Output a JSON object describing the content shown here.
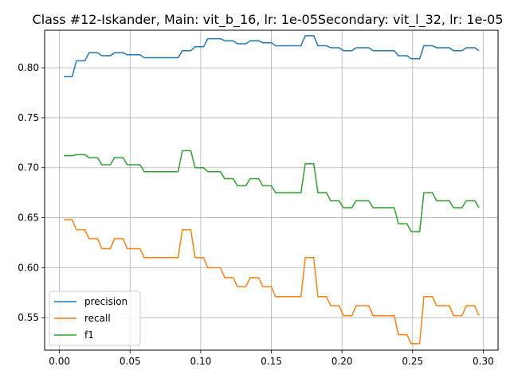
{
  "chart_data": {
    "type": "line",
    "title": "Class #12-Iskander, Main: vit_b_16, lr: 1e-05Secondary: vit_l_32, lr: 1e-05",
    "xlabel": "",
    "ylabel": "",
    "xlim": [
      -0.0105,
      0.3105
    ],
    "ylim": [
      0.5175,
      0.8375
    ],
    "x_ticks": [
      0.0,
      0.05,
      0.1,
      0.15,
      0.2,
      0.25,
      0.3
    ],
    "x_tick_labels": [
      "0.00",
      "0.05",
      "0.10",
      "0.15",
      "0.20",
      "0.25",
      "0.30"
    ],
    "y_ticks": [
      0.55,
      0.6,
      0.65,
      0.7,
      0.75,
      0.8
    ],
    "y_tick_labels": [
      "0.55",
      "0.60",
      "0.65",
      "0.70",
      "0.75",
      "0.80"
    ],
    "grid": true,
    "legend_position": "lower-left",
    "series": [
      {
        "name": "precision",
        "color": "#1f77b4",
        "points": [
          [
            0.003,
            0.791
          ],
          [
            0.009,
            0.791
          ],
          [
            0.012,
            0.807
          ],
          [
            0.018,
            0.807
          ],
          [
            0.021,
            0.815
          ],
          [
            0.027,
            0.815
          ],
          [
            0.03,
            0.812
          ],
          [
            0.036,
            0.812
          ],
          [
            0.039,
            0.815
          ],
          [
            0.045,
            0.815
          ],
          [
            0.048,
            0.813
          ],
          [
            0.057,
            0.813
          ],
          [
            0.06,
            0.81
          ],
          [
            0.084,
            0.81
          ],
          [
            0.087,
            0.817
          ],
          [
            0.093,
            0.817
          ],
          [
            0.096,
            0.821
          ],
          [
            0.102,
            0.821
          ],
          [
            0.105,
            0.829
          ],
          [
            0.114,
            0.829
          ],
          [
            0.117,
            0.827
          ],
          [
            0.123,
            0.827
          ],
          [
            0.126,
            0.824
          ],
          [
            0.132,
            0.824
          ],
          [
            0.135,
            0.827
          ],
          [
            0.141,
            0.827
          ],
          [
            0.144,
            0.825
          ],
          [
            0.15,
            0.825
          ],
          [
            0.153,
            0.822
          ],
          [
            0.171,
            0.822
          ],
          [
            0.174,
            0.832
          ],
          [
            0.18,
            0.832
          ],
          [
            0.183,
            0.822
          ],
          [
            0.189,
            0.822
          ],
          [
            0.192,
            0.82
          ],
          [
            0.198,
            0.82
          ],
          [
            0.201,
            0.817
          ],
          [
            0.207,
            0.817
          ],
          [
            0.21,
            0.82
          ],
          [
            0.219,
            0.82
          ],
          [
            0.222,
            0.817
          ],
          [
            0.237,
            0.817
          ],
          [
            0.24,
            0.812
          ],
          [
            0.246,
            0.812
          ],
          [
            0.249,
            0.809
          ],
          [
            0.255,
            0.809
          ],
          [
            0.258,
            0.822
          ],
          [
            0.264,
            0.822
          ],
          [
            0.267,
            0.82
          ],
          [
            0.276,
            0.82
          ],
          [
            0.279,
            0.817
          ],
          [
            0.285,
            0.817
          ],
          [
            0.288,
            0.82
          ],
          [
            0.294,
            0.82
          ],
          [
            0.297,
            0.817
          ]
        ]
      },
      {
        "name": "recall",
        "color": "#ff7f0e",
        "points": [
          [
            0.003,
            0.648
          ],
          [
            0.009,
            0.648
          ],
          [
            0.012,
            0.638
          ],
          [
            0.018,
            0.638
          ],
          [
            0.021,
            0.629
          ],
          [
            0.027,
            0.629
          ],
          [
            0.03,
            0.619
          ],
          [
            0.036,
            0.619
          ],
          [
            0.039,
            0.629
          ],
          [
            0.045,
            0.629
          ],
          [
            0.048,
            0.619
          ],
          [
            0.057,
            0.619
          ],
          [
            0.06,
            0.61
          ],
          [
            0.084,
            0.61
          ],
          [
            0.087,
            0.638
          ],
          [
            0.093,
            0.638
          ],
          [
            0.096,
            0.61
          ],
          [
            0.102,
            0.61
          ],
          [
            0.105,
            0.6
          ],
          [
            0.114,
            0.6
          ],
          [
            0.117,
            0.59
          ],
          [
            0.123,
            0.59
          ],
          [
            0.126,
            0.581
          ],
          [
            0.132,
            0.581
          ],
          [
            0.135,
            0.59
          ],
          [
            0.141,
            0.59
          ],
          [
            0.144,
            0.581
          ],
          [
            0.15,
            0.581
          ],
          [
            0.153,
            0.571
          ],
          [
            0.171,
            0.571
          ],
          [
            0.174,
            0.61
          ],
          [
            0.18,
            0.61
          ],
          [
            0.183,
            0.571
          ],
          [
            0.189,
            0.571
          ],
          [
            0.192,
            0.562
          ],
          [
            0.198,
            0.562
          ],
          [
            0.201,
            0.552
          ],
          [
            0.207,
            0.552
          ],
          [
            0.21,
            0.562
          ],
          [
            0.219,
            0.562
          ],
          [
            0.222,
            0.552
          ],
          [
            0.237,
            0.552
          ],
          [
            0.24,
            0.533
          ],
          [
            0.246,
            0.533
          ],
          [
            0.249,
            0.524
          ],
          [
            0.255,
            0.524
          ],
          [
            0.258,
            0.571
          ],
          [
            0.264,
            0.571
          ],
          [
            0.267,
            0.562
          ],
          [
            0.276,
            0.562
          ],
          [
            0.279,
            0.552
          ],
          [
            0.285,
            0.552
          ],
          [
            0.288,
            0.562
          ],
          [
            0.294,
            0.562
          ],
          [
            0.297,
            0.552
          ]
        ]
      },
      {
        "name": "f1",
        "color": "#2ca02c",
        "points": [
          [
            0.003,
            0.712
          ],
          [
            0.009,
            0.712
          ],
          [
            0.012,
            0.713
          ],
          [
            0.018,
            0.713
          ],
          [
            0.021,
            0.71
          ],
          [
            0.027,
            0.71
          ],
          [
            0.03,
            0.703
          ],
          [
            0.036,
            0.703
          ],
          [
            0.039,
            0.71
          ],
          [
            0.045,
            0.71
          ],
          [
            0.048,
            0.703
          ],
          [
            0.057,
            0.703
          ],
          [
            0.06,
            0.696
          ],
          [
            0.084,
            0.696
          ],
          [
            0.087,
            0.717
          ],
          [
            0.093,
            0.717
          ],
          [
            0.096,
            0.7
          ],
          [
            0.102,
            0.7
          ],
          [
            0.105,
            0.696
          ],
          [
            0.114,
            0.696
          ],
          [
            0.117,
            0.689
          ],
          [
            0.123,
            0.689
          ],
          [
            0.126,
            0.682
          ],
          [
            0.132,
            0.682
          ],
          [
            0.135,
            0.689
          ],
          [
            0.141,
            0.689
          ],
          [
            0.144,
            0.682
          ],
          [
            0.15,
            0.682
          ],
          [
            0.153,
            0.675
          ],
          [
            0.171,
            0.675
          ],
          [
            0.174,
            0.704
          ],
          [
            0.18,
            0.704
          ],
          [
            0.183,
            0.675
          ],
          [
            0.189,
            0.675
          ],
          [
            0.192,
            0.667
          ],
          [
            0.198,
            0.667
          ],
          [
            0.201,
            0.66
          ],
          [
            0.207,
            0.66
          ],
          [
            0.21,
            0.667
          ],
          [
            0.219,
            0.667
          ],
          [
            0.222,
            0.66
          ],
          [
            0.237,
            0.66
          ],
          [
            0.24,
            0.644
          ],
          [
            0.246,
            0.644
          ],
          [
            0.249,
            0.636
          ],
          [
            0.255,
            0.636
          ],
          [
            0.258,
            0.675
          ],
          [
            0.264,
            0.675
          ],
          [
            0.267,
            0.667
          ],
          [
            0.276,
            0.667
          ],
          [
            0.279,
            0.66
          ],
          [
            0.285,
            0.66
          ],
          [
            0.288,
            0.667
          ],
          [
            0.294,
            0.667
          ],
          [
            0.297,
            0.66
          ]
        ]
      }
    ]
  }
}
